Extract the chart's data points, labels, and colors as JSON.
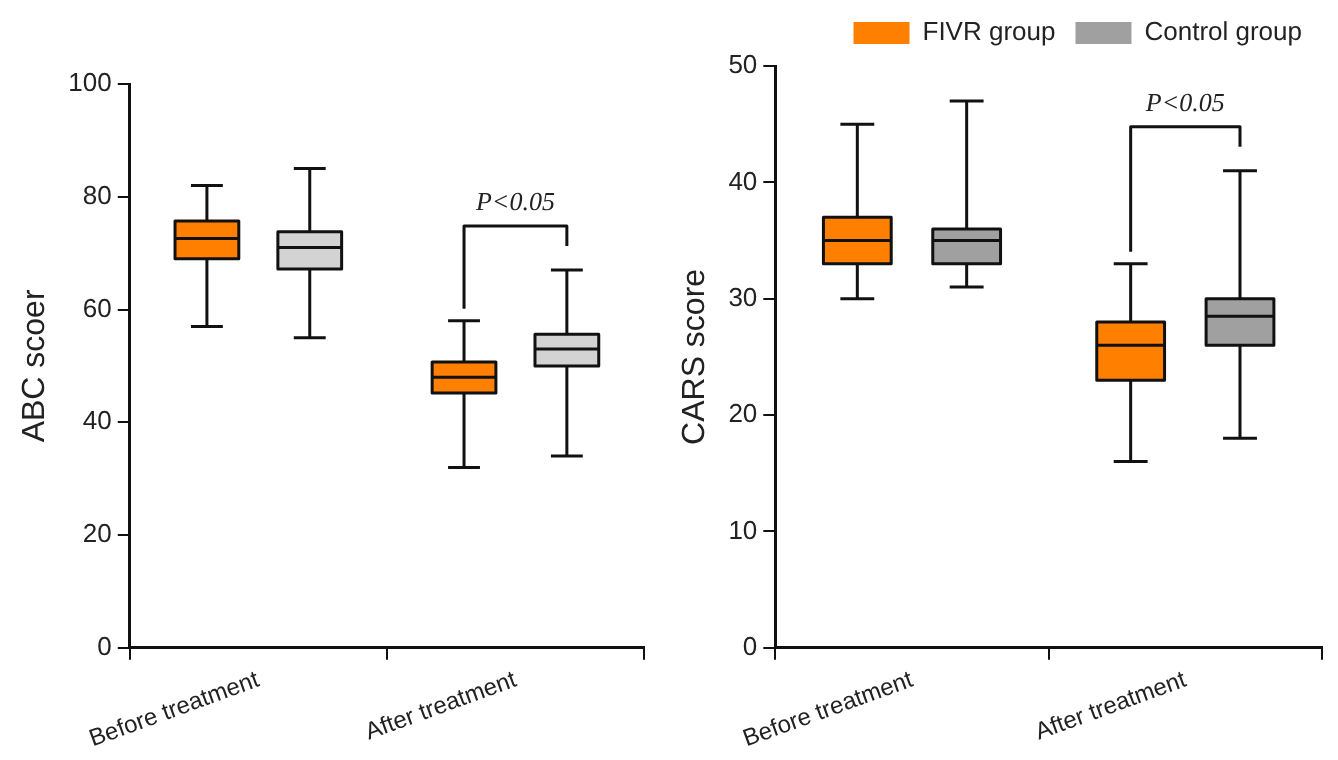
{
  "chart_data": [
    {
      "type": "box",
      "ylabel": "ABC scoer",
      "categories": [
        "Before treatment",
        "After treatment"
      ],
      "ylim": [
        0,
        100
      ],
      "yticks": [
        0,
        20,
        40,
        60,
        80,
        100
      ],
      "grid": false,
      "legend": false,
      "series": [
        {
          "color": "#ff7f00",
          "boxes": [
            {
              "low": 57,
              "q1": 69,
              "median": 72.6,
              "q3": 75.7,
              "high": 82
            },
            {
              "low": 32,
              "q1": 45.2,
              "median": 48,
              "q3": 50.7,
              "high": 58
            }
          ]
        },
        {
          "color": "#d3d3d3",
          "boxes": [
            {
              "low": 55,
              "q1": 67.2,
              "median": 71,
              "q3": 73.8,
              "high": 85
            },
            {
              "low": 34,
              "q1": 50,
              "median": 53,
              "q3": 55.6,
              "high": 67
            }
          ]
        }
      ],
      "annotations": [
        "P<0.05"
      ]
    },
    {
      "type": "box",
      "ylabel": "CARS score",
      "categories": [
        "Before treatment",
        "After treatment"
      ],
      "ylim": [
        0,
        50
      ],
      "yticks": [
        0,
        10,
        20,
        30,
        40,
        50
      ],
      "grid": false,
      "legend": "top right",
      "series": [
        {
          "name": "FIVR group",
          "color": "#ff7f00",
          "boxes": [
            {
              "low": 30,
              "q1": 33,
              "median": 35,
              "q3": 37,
              "high": 45
            },
            {
              "low": 16,
              "q1": 23,
              "median": 26,
              "q3": 28,
              "high": 33
            }
          ]
        },
        {
          "name": "Control group",
          "color": "#a0a0a0",
          "boxes": [
            {
              "low": 31,
              "q1": 33,
              "median": 35,
              "q3": 36,
              "high": 47
            },
            {
              "low": 18,
              "q1": 26,
              "median": 28.5,
              "q3": 30,
              "high": 41
            }
          ]
        }
      ],
      "annotations": [
        "P<0.05"
      ]
    }
  ]
}
